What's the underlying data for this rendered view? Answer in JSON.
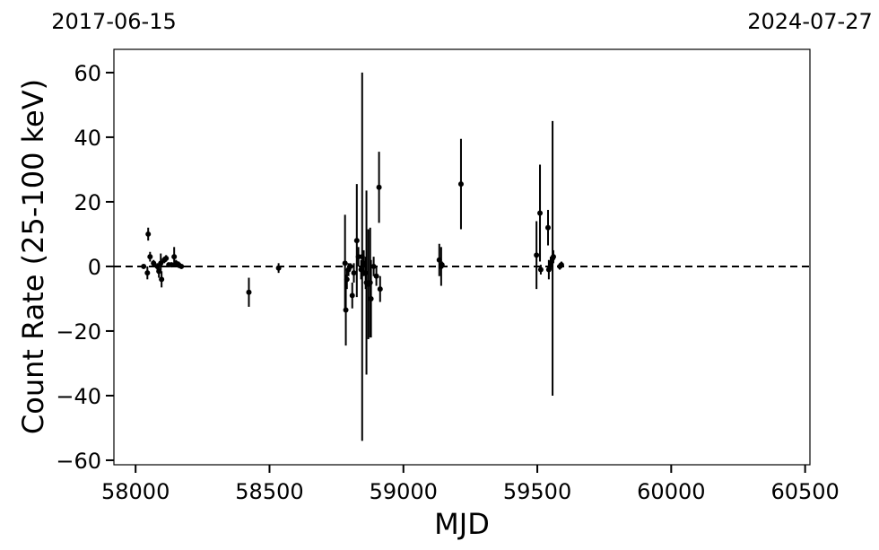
{
  "chart_data": {
    "type": "errorbar",
    "xlabel": "MJD",
    "ylabel": "Count Rate (25-100 keV)",
    "xlim": [
      57919,
      60518
    ],
    "ylim": [
      -61.4,
      67.2
    ],
    "xticks": [
      58000,
      58500,
      59000,
      59500,
      60000,
      60500
    ],
    "yticks": [
      {
        "value": -60,
        "label": "−60"
      },
      {
        "value": -40,
        "label": "−40"
      },
      {
        "value": -20,
        "label": "−20"
      },
      0,
      20,
      40,
      60
    ],
    "x2ticks": [
      {
        "value": 57919,
        "label": "2017-06-15"
      },
      {
        "value": 60518,
        "label": "2024-07-27"
      }
    ],
    "hline": 0,
    "color": "#000000",
    "series": [
      {
        "name": "Count Rate",
        "x": [
          58030,
          58044,
          58047,
          58054,
          58067,
          58081,
          58087,
          58094,
          58097,
          58107,
          58114,
          58124,
          58134,
          58144,
          58151,
          58161,
          58171,
          58423,
          58534,
          58782,
          58785,
          58789,
          58795,
          58802,
          58809,
          58815,
          58826,
          58832,
          58842,
          58846,
          58852,
          58859,
          58862,
          58869,
          58876,
          58879,
          58889,
          58899,
          58909,
          58913,
          59134,
          59141,
          59144,
          59215,
          59497,
          59510,
          59513,
          59540,
          59543,
          59550,
          59557,
          59560,
          59584,
          59590
        ],
        "values": [
          0,
          -2,
          10,
          3,
          1,
          0,
          -1.5,
          1,
          -4,
          2,
          2.5,
          0.5,
          0.5,
          3,
          1,
          0.5,
          0,
          -8,
          -0.5,
          1,
          -13.5,
          -4,
          -1,
          0,
          -9,
          -2,
          8,
          3,
          -1,
          3,
          1,
          -2,
          -5,
          -5.5,
          -5,
          -10,
          0,
          -3,
          24.5,
          -7,
          2,
          0,
          0.5,
          25.5,
          3.5,
          16.5,
          -1,
          12,
          -1,
          1,
          2.5,
          3,
          0,
          0.5
        ],
        "errors": [
          0.5,
          2,
          2,
          1.5,
          1,
          1,
          2,
          3,
          2.5,
          1,
          1,
          0.5,
          0.5,
          3,
          1,
          1,
          0.5,
          4.5,
          1.5,
          15,
          11,
          3,
          2,
          1,
          4,
          3,
          17.5,
          3,
          3,
          57,
          4,
          5,
          28.5,
          17,
          17,
          12,
          3,
          3,
          11,
          4,
          5,
          6,
          1,
          14,
          10.5,
          15,
          1.5,
          5.5,
          3,
          2,
          42.5,
          2,
          1,
          1
        ]
      }
    ]
  }
}
